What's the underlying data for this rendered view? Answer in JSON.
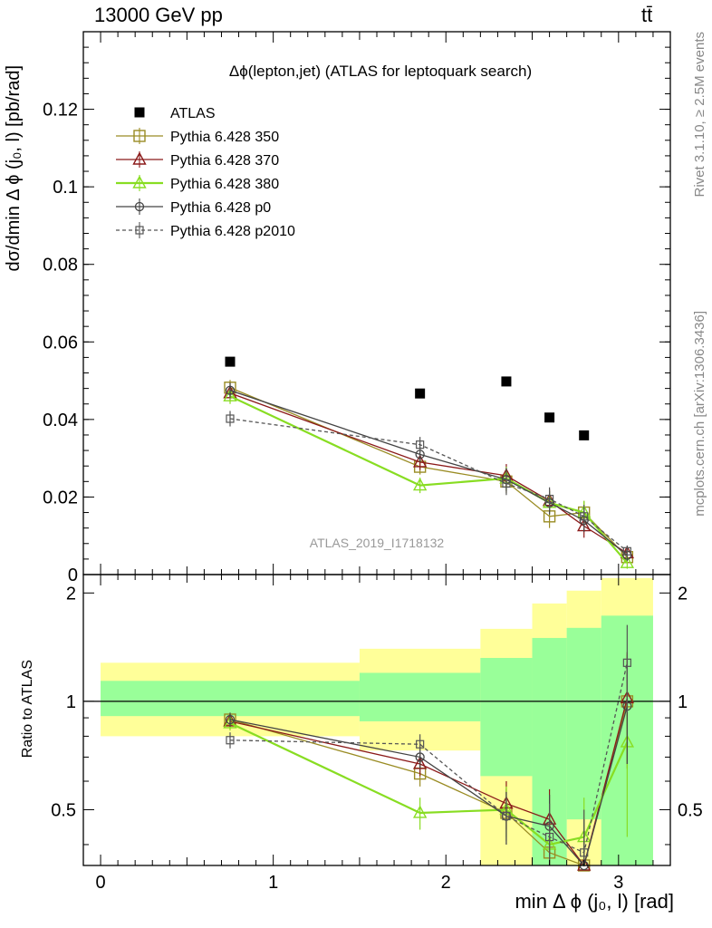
{
  "header": {
    "left": "13000 GeV pp",
    "right": "tt̄"
  },
  "side": {
    "rivet": "Rivet 3.1.10, ≥ 2.5M events",
    "mcplots": "mcplots.cern.ch [arXiv:1306.3436]"
  },
  "chart_data": [
    {
      "type": "scatter",
      "title": "Δϕ(lepton,jet) (ATLAS for leptoquark search)",
      "ylabel": "dσ/dmin Δ ϕ (j₀, l) [pb/rad]",
      "watermark": "ATLAS_2019_I1718132",
      "xlim": [
        -0.1,
        3.3
      ],
      "ylim": [
        0,
        0.14
      ],
      "yticks": [
        0,
        0.02,
        0.04,
        0.06,
        0.08,
        0.1,
        0.12
      ],
      "ytick_labels": [
        "0",
        "0.02",
        "0.04",
        "0.06",
        "0.08",
        "0.1",
        "0.12"
      ],
      "legend_position": "top-left",
      "x": [
        0.75,
        1.85,
        2.35,
        2.6,
        2.8,
        3.05
      ],
      "series": [
        {
          "name": "ATLAS",
          "color": "#000000",
          "marker": "filled-square",
          "line": "none",
          "values": [
            0.0549,
            0.0467,
            0.0498,
            0.0405,
            0.0359,
            null
          ]
        },
        {
          "name": "Pythia 6.428 350",
          "color": "#9a8c24",
          "marker": "open-square",
          "line": "solid",
          "values": [
            0.0482,
            0.0278,
            0.024,
            0.015,
            0.016,
            0.0045
          ],
          "errors": [
            0.002,
            0.002,
            0.003,
            0.003,
            0.003,
            0.0015
          ]
        },
        {
          "name": "Pythia 6.428 370",
          "color": "#8b1a1a",
          "marker": "open-triangle",
          "line": "solid",
          "values": [
            0.0468,
            0.029,
            0.0255,
            0.019,
            0.0125,
            0.0055
          ],
          "errors": [
            0.002,
            0.002,
            0.003,
            0.003,
            0.003,
            0.0015
          ]
        },
        {
          "name": "Pythia 6.428 380",
          "color": "#88dd22",
          "marker": "open-triangle",
          "line": "solid-thick",
          "values": [
            0.046,
            0.023,
            0.0248,
            0.0185,
            0.016,
            0.003
          ],
          "errors": [
            0.002,
            0.002,
            0.003,
            0.003,
            0.003,
            0.0015
          ]
        },
        {
          "name": "Pythia 6.428 p0",
          "color": "#444444",
          "marker": "open-circle",
          "line": "solid",
          "values": [
            0.0475,
            0.031,
            0.0245,
            0.0185,
            0.014,
            0.005
          ],
          "errors": [
            0.002,
            0.002,
            0.003,
            0.003,
            0.003,
            0.0015
          ]
        },
        {
          "name": "Pythia 6.428 p2010",
          "color": "#555555",
          "marker": "open-square-small",
          "line": "dashed",
          "values": [
            0.0402,
            0.0335,
            0.0235,
            0.0195,
            0.015,
            0.006
          ],
          "errors": [
            0.002,
            0.002,
            0.003,
            0.003,
            0.003,
            0.0015
          ]
        }
      ]
    },
    {
      "type": "scatter",
      "ylabel": "Ratio to ATLAS",
      "xlabel": "min Δ ϕ (j₀, l) [rad]",
      "xlim": [
        -0.1,
        3.3
      ],
      "ylim": [
        0.35,
        2.25
      ],
      "yticks": [
        0.5,
        1,
        2
      ],
      "ytick_labels": [
        "0.5",
        "1",
        "2"
      ],
      "xticks": [
        0,
        1,
        2,
        3
      ],
      "xtick_labels": [
        "0",
        "1",
        "2",
        "3"
      ],
      "bands": {
        "edges": [
          0,
          1.5,
          2.2,
          2.5,
          2.7,
          2.9,
          3.2
        ],
        "yellow": [
          [
            0.8,
            1.28
          ],
          [
            0.73,
            1.4
          ],
          [
            0.35,
            1.59
          ],
          [
            0.35,
            1.87
          ],
          [
            0.35,
            2.03
          ],
          [
            0.35,
            2.2
          ]
        ],
        "green": [
          [
            0.91,
            1.14
          ],
          [
            0.88,
            1.2
          ],
          [
            0.62,
            1.32
          ],
          [
            0.35,
            1.5
          ],
          [
            0.47,
            1.6
          ],
          [
            0.35,
            1.73
          ]
        ],
        "yellow_color": "#ffff99",
        "green_color": "#99ff99"
      },
      "x": [
        0.75,
        1.85,
        2.35,
        2.6,
        2.8,
        3.05
      ],
      "series": [
        {
          "name": "Pythia 6.428 350",
          "values": [
            0.89,
            0.63,
            0.49,
            0.38,
            0.35,
            1.0
          ],
          "errors": [
            0.04,
            0.05,
            0.08,
            0.1,
            0.12,
            0.35
          ]
        },
        {
          "name": "Pythia 6.428 370",
          "values": [
            0.88,
            0.67,
            0.52,
            0.47,
            0.35,
            1.02
          ],
          "errors": [
            0.04,
            0.05,
            0.08,
            0.1,
            0.12,
            0.35
          ]
        },
        {
          "name": "Pythia 6.428 380",
          "values": [
            0.87,
            0.49,
            0.5,
            0.4,
            0.42,
            0.77
          ],
          "errors": [
            0.04,
            0.05,
            0.08,
            0.1,
            0.12,
            0.35
          ]
        },
        {
          "name": "Pythia 6.428 p0",
          "values": [
            0.89,
            0.7,
            0.48,
            0.45,
            0.35,
            0.97
          ],
          "errors": [
            0.04,
            0.05,
            0.08,
            0.1,
            0.12,
            0.3
          ]
        },
        {
          "name": "Pythia 6.428 p2010",
          "values": [
            0.78,
            0.76,
            0.48,
            0.42,
            0.38,
            1.28
          ],
          "errors": [
            0.04,
            0.05,
            0.08,
            0.1,
            0.12,
            0.35
          ]
        }
      ]
    }
  ]
}
